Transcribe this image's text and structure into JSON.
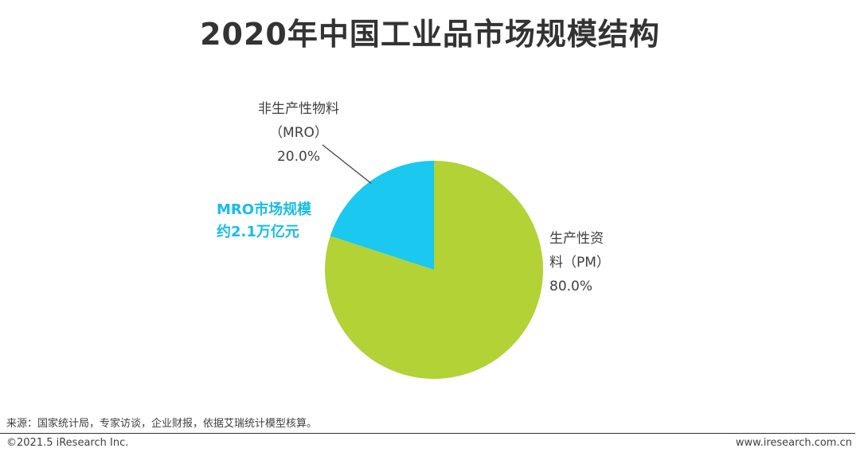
{
  "page": {
    "title": "2020年中国工业品市场规模结构",
    "source": "来源：国家统计局，专家访谈，企业财报，依据艾瑞统计模型核算。",
    "copyright": "©2021.5 iResearch Inc.",
    "website": "www.iresearch.com.cn"
  },
  "annotation": {
    "line1": "MRO市场规模",
    "line2": "约2.1万亿元"
  },
  "chart_data": {
    "type": "pie",
    "title": "2020年中国工业品市场规模结构",
    "slices": [
      {
        "name_line1": "非生产性物料",
        "name_line2": "（MRO）",
        "value": 20.0,
        "value_label": "20.0%",
        "color": "#1ac8f0"
      },
      {
        "name_line1": "生产性资",
        "name_line2": "料（PM）",
        "value": 80.0,
        "value_label": "80.0%",
        "color": "#b2d235"
      }
    ],
    "legend": "none"
  }
}
